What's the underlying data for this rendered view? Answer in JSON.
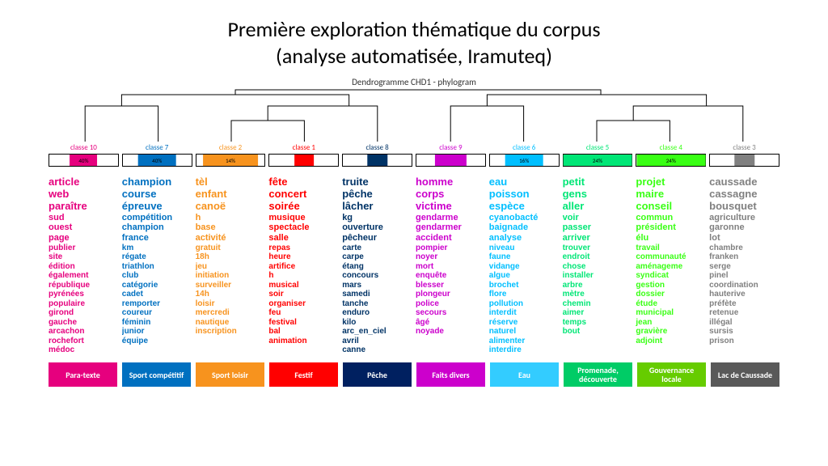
{
  "title_line1": "Première exploration thématique du corpus",
  "title_line2": "(analyse automatisée, Iramuteq)",
  "dendrogram_title": "Dendrogramme CHD1 - phylogram",
  "tree": {
    "line_color": "#000000",
    "line_width": 1
  },
  "classes": [
    {
      "label": "classe 10",
      "label_color": "#e6007e",
      "bar_fill": "#e6007e",
      "bar_pct": "40%",
      "fill_width_pct": 40
    },
    {
      "label": "classe 7",
      "label_color": "#0070c0",
      "bar_fill": "#0070c0",
      "bar_pct": "40%",
      "fill_width_pct": 55
    },
    {
      "label": "classe 2",
      "label_color": "#f7931e",
      "bar_fill": "#f7931e",
      "bar_pct": "14%",
      "fill_width_pct": 80
    },
    {
      "label": "classe 1",
      "label_color": "#ff0000",
      "bar_fill": "#ff0000",
      "bar_pct": "",
      "fill_width_pct": 28
    },
    {
      "label": "classe 8",
      "label_color": "#003366",
      "bar_fill": "#003366",
      "bar_pct": "",
      "fill_width_pct": 30
    },
    {
      "label": "classe 9",
      "label_color": "#cc00cc",
      "bar_fill": "#cc00cc",
      "bar_pct": "",
      "fill_width_pct": 45
    },
    {
      "label": "classe 6",
      "label_color": "#00bfff",
      "bar_fill": "#00bfff",
      "bar_pct": "16%",
      "fill_width_pct": 55
    },
    {
      "label": "classe 5",
      "label_color": "#00e676",
      "bar_fill": "#00e676",
      "bar_pct": "24%",
      "fill_width_pct": 100
    },
    {
      "label": "classe 4",
      "label_color": "#39ff14",
      "bar_fill": "#39ff14",
      "bar_pct": "24%",
      "fill_width_pct": 100
    },
    {
      "label": "classe 3",
      "label_color": "#808080",
      "bar_fill": "#808080",
      "bar_pct": "",
      "fill_width_pct": 30
    }
  ],
  "word_columns": [
    {
      "color": "#e6007e",
      "words": [
        "article",
        "web",
        "paraître",
        "sud",
        "ouest",
        "page",
        "publier",
        "site",
        "édition",
        "également",
        "république",
        "pyrénées",
        "populaire",
        "girond",
        "gauche",
        "arcachon",
        "rochefort",
        "médoc"
      ]
    },
    {
      "color": "#0070c0",
      "words": [
        "champion",
        "course",
        "épreuve",
        "compétition",
        "champion",
        "france",
        "km",
        "régate",
        "triathlon",
        "club",
        "catégorie",
        "cadet",
        "remporter",
        "coureur",
        "féminin",
        "junior",
        "équipe"
      ]
    },
    {
      "color": "#f7931e",
      "words": [
        "tèl",
        "enfant",
        "canoë",
        "h",
        "base",
        "activité",
        "gratuit",
        "18h",
        "jeu",
        "initiation",
        "surveiller",
        "14h",
        "loisir",
        "mercredi",
        "nautique",
        "inscription"
      ]
    },
    {
      "color": "#ff0000",
      "words": [
        "fête",
        "concert",
        "soirée",
        "musique",
        "spectacle",
        "salle",
        "repas",
        "heure",
        "artifice",
        "h",
        "musical",
        "soir",
        "organiser",
        "feu",
        "festival",
        "bal",
        "animation"
      ]
    },
    {
      "color": "#003366",
      "words": [
        "truite",
        "pêche",
        "lâcher",
        "kg",
        "ouverture",
        "pêcheur",
        "carte",
        "carpe",
        "étang",
        "concours",
        "mars",
        "samedi",
        "tanche",
        "enduro",
        "kilo",
        "arc_en_ciel",
        "avril",
        "canne"
      ]
    },
    {
      "color": "#cc00cc",
      "words": [
        "homme",
        "corps",
        "victime",
        "gendarme",
        "gendarmer",
        "accident",
        "pompier",
        "noyer",
        "mort",
        "enquête",
        "blesser",
        "plongeur",
        "police",
        "secours",
        "âgé",
        "noyade"
      ]
    },
    {
      "color": "#00bfff",
      "words": [
        "eau",
        "poisson",
        "espèce",
        "cyanobacté",
        "baignade",
        "analyse",
        "niveau",
        "faune",
        "vidange",
        "algue",
        "brochet",
        "flore",
        "pollution",
        "interdit",
        "réserve",
        "naturel",
        "alimenter",
        "interdire"
      ]
    },
    {
      "color": "#00e676",
      "words": [
        "petit",
        "gens",
        "aller",
        "voir",
        "passer",
        "arriver",
        "trouver",
        "endroit",
        "chose",
        "installer",
        "arbre",
        "mètre",
        "chemin",
        "aimer",
        "temps",
        "bout"
      ]
    },
    {
      "color": "#39ff14",
      "words": [
        "projet",
        "maire",
        "conseil",
        "commun",
        "président",
        "élu",
        "travail",
        "communauté",
        "aménageme",
        "syndicat",
        "gestion",
        "dossier",
        "étude",
        "municipal",
        "jean",
        "gravière",
        "adjoint"
      ]
    },
    {
      "color": "#808080",
      "words": [
        "caussade",
        "cassagne",
        "bousquet",
        "agriculture",
        "garonne",
        "lot",
        "chambre",
        "franken",
        "serge",
        "pinel",
        "coordination",
        "hauterive",
        "préfète",
        "retenue",
        "illégal",
        "sursis",
        "prison"
      ]
    }
  ],
  "bottom_labels": [
    {
      "text": "Para-texte",
      "bg": "#e6007e"
    },
    {
      "text": "Sport compétitif",
      "bg": "#0070c0"
    },
    {
      "text": "Sport loisir",
      "bg": "#f7931e"
    },
    {
      "text": "Festif",
      "bg": "#ff0000"
    },
    {
      "text": "Pêche",
      "bg": "#002060"
    },
    {
      "text": "Faits divers",
      "bg": "#cc00cc"
    },
    {
      "text": "Eau",
      "bg": "#33ccff"
    },
    {
      "text": "Promenade, découverte",
      "bg": "#00cc66"
    },
    {
      "text": "Gouvernance locale",
      "bg": "#66cc00"
    },
    {
      "text": "Lac de Caussade",
      "bg": "#595959"
    }
  ]
}
